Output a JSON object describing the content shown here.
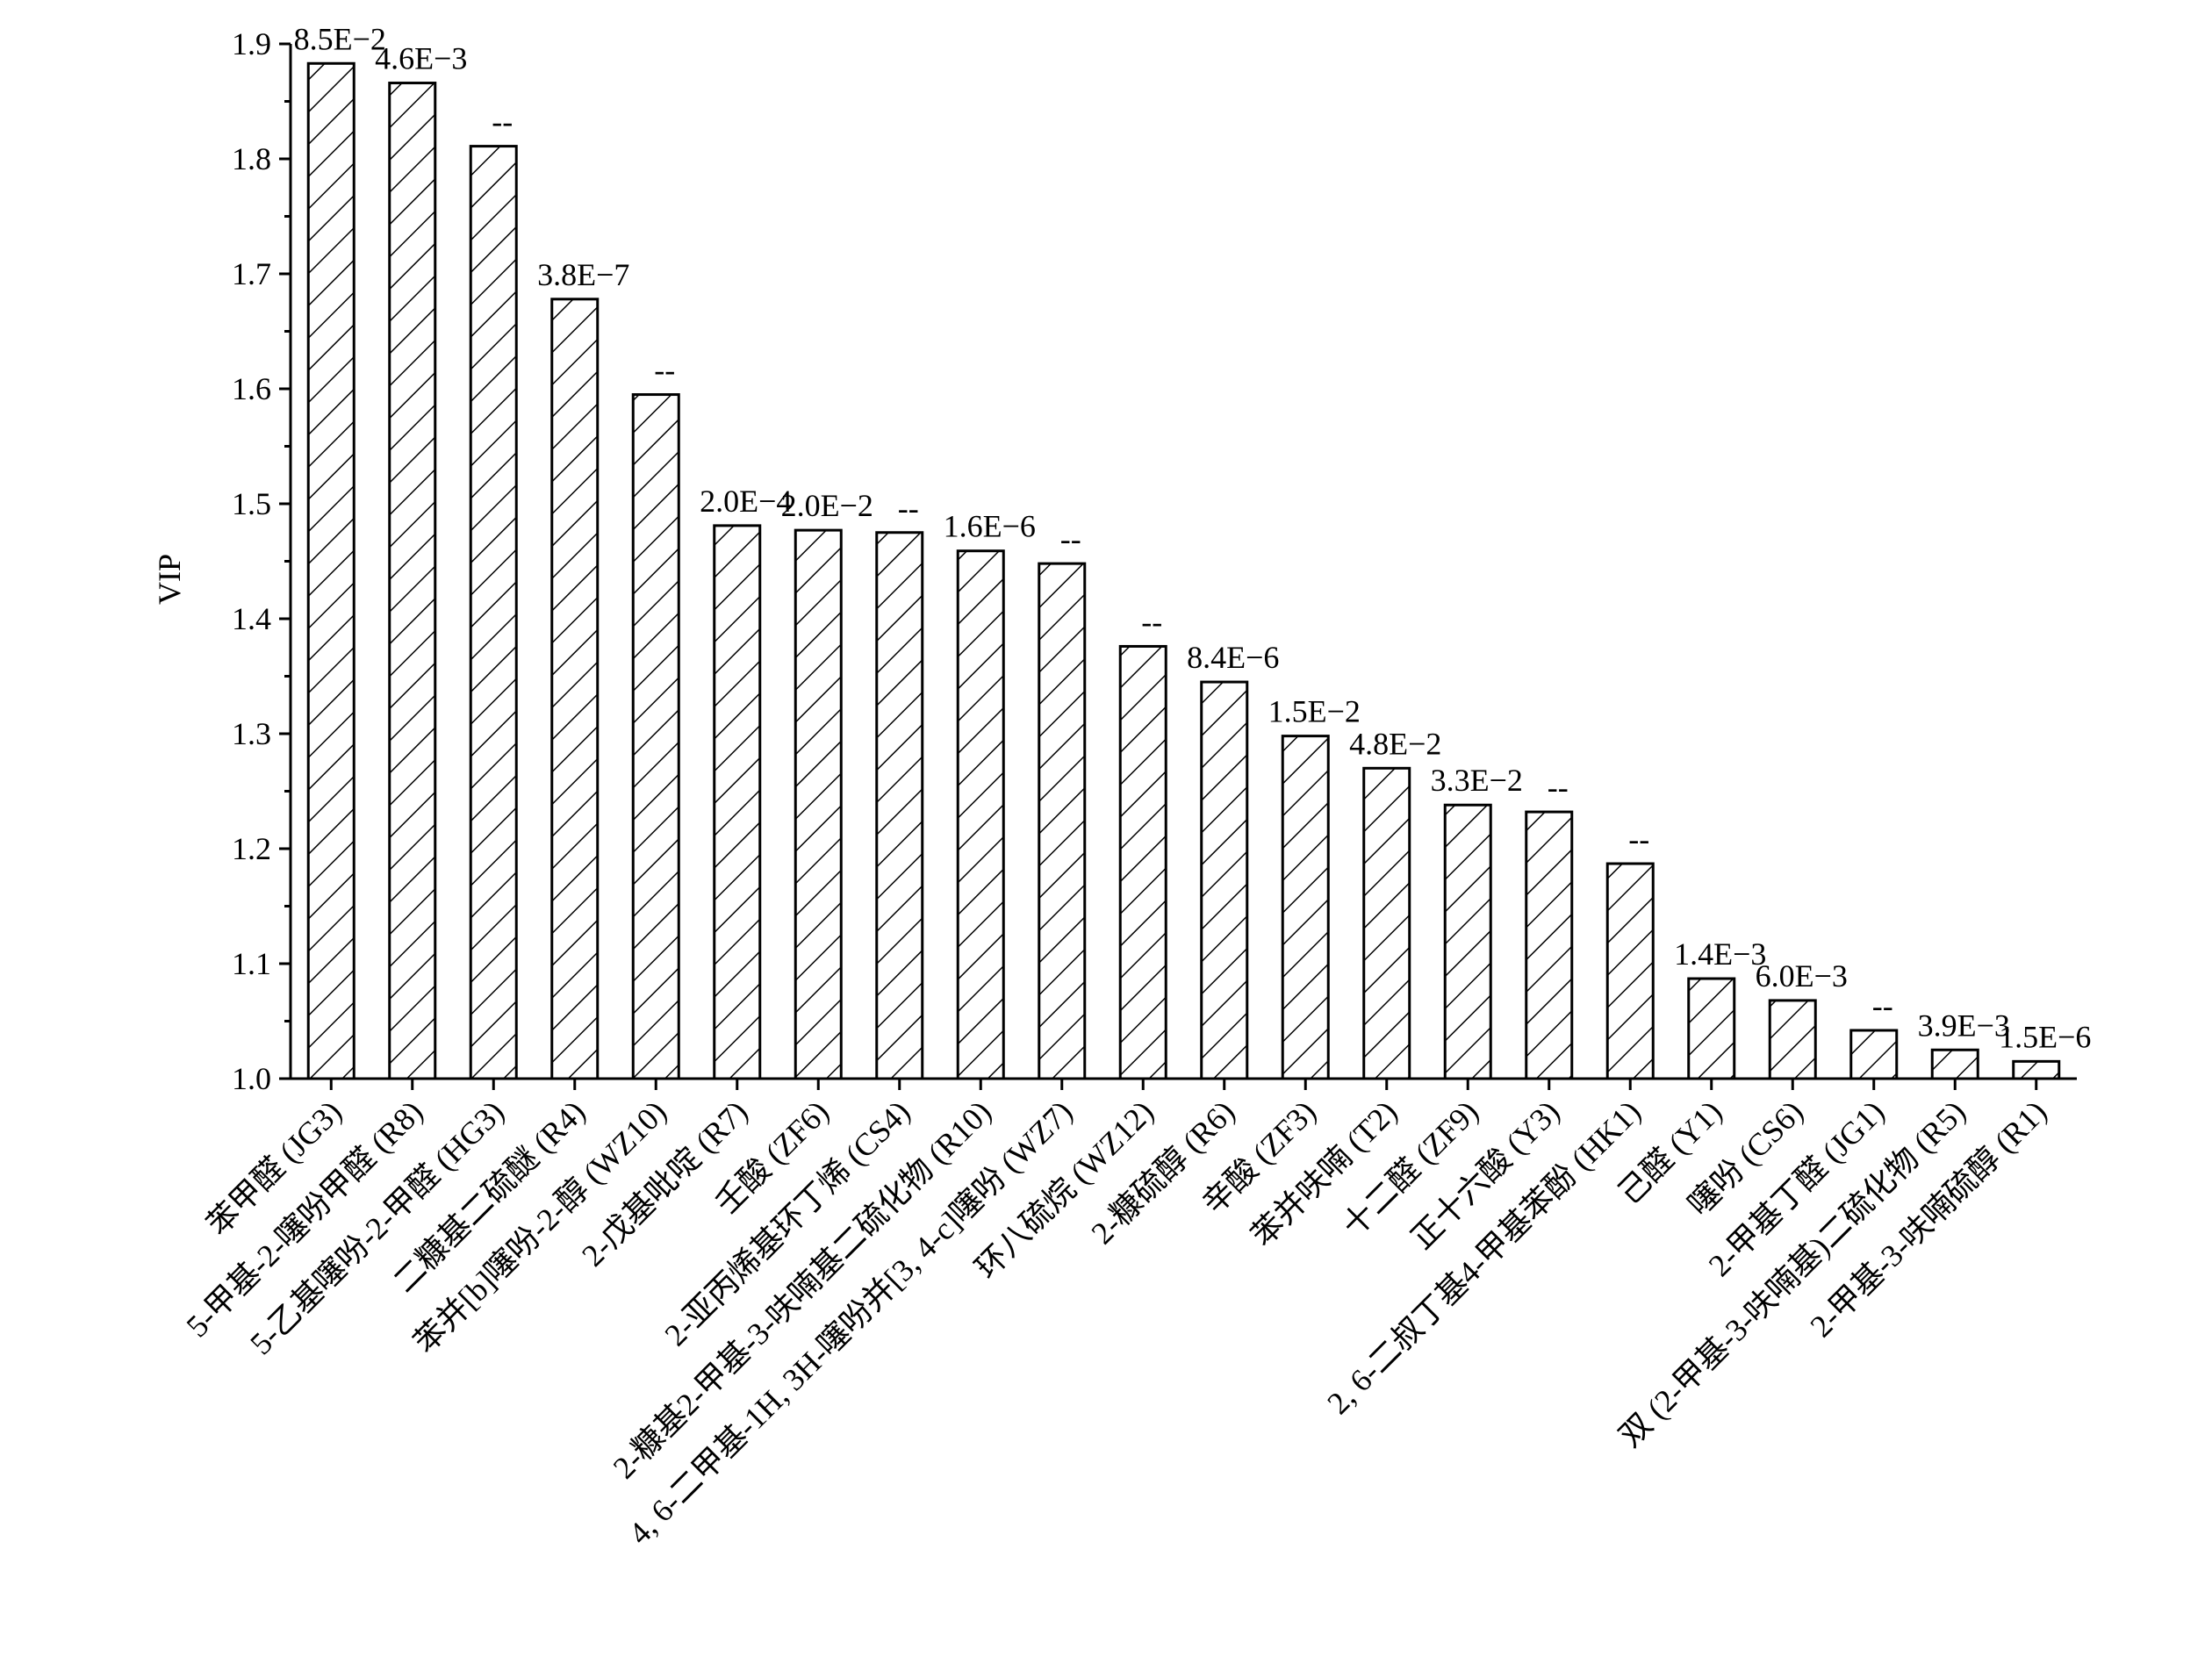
{
  "chart_data": {
    "type": "bar",
    "y_label": "VIP",
    "categories": [
      "苯甲醛 (JG3)",
      "5-甲基-2-噻吩甲醛 (R8)",
      "5-乙基噻吩-2-甲醛 (HG3)",
      "二糠基二硫醚 (R4)",
      "苯并[b]噻吩-2-醇 (WZ10)",
      "2-戊基吡啶 (R7)",
      "壬酸 (ZF6)",
      "2-亚丙烯基环丁烯 (CS4)",
      "2-糠基2-甲基-3-呋喃基二硫化物 (R10)",
      "4, 6-二甲基-1H, 3H-噻吩并[3, 4-c]噻吩 (WZ7)",
      "环八硫烷 (WZ12)",
      "2-糠硫醇 (R6)",
      "辛酸 (ZF3)",
      "苯并呋喃 (T2)",
      "十二醛 (ZF9)",
      "正十六酸 (Y3)",
      "2, 6-二叔丁基4-甲基苯酚 (HK1)",
      "己醛 (Y1)",
      "噻吩 (CS6)",
      "2-甲基丁醛 (JG1)",
      "双 (2-甲基-3-呋喃基)二硫化物 (R5)",
      "2-甲基-3-呋喃硫醇 (R1)"
    ],
    "values": [
      1.883,
      1.866,
      1.811,
      1.678,
      1.595,
      1.481,
      1.477,
      1.475,
      1.459,
      1.448,
      1.376,
      1.345,
      1.298,
      1.27,
      1.238,
      1.232,
      1.187,
      1.087,
      1.068,
      1.042,
      1.025,
      1.015
    ],
    "annotations": [
      "8.5E−2",
      "4.6E−3",
      "--",
      "3.8E−7",
      "--",
      "2.0E−4",
      "2.0E−2",
      "--",
      "1.6E−6",
      "--",
      "--",
      "8.4E−6",
      "1.5E−2",
      "4.8E−2",
      "3.3E−2",
      "--",
      "--",
      "1.4E−3",
      "6.0E−3",
      "--",
      "3.9E−3",
      "1.5E−6"
    ],
    "color": "#000000",
    "hatch": "diagonal",
    "ylim": [
      1.0,
      1.9
    ],
    "yticks": [
      {
        "value": 1.0,
        "label": "1.0"
      },
      1.1,
      1.2,
      1.3,
      1.4,
      1.5,
      1.6,
      1.7,
      1.8,
      1.9
    ],
    "grid": false
  }
}
